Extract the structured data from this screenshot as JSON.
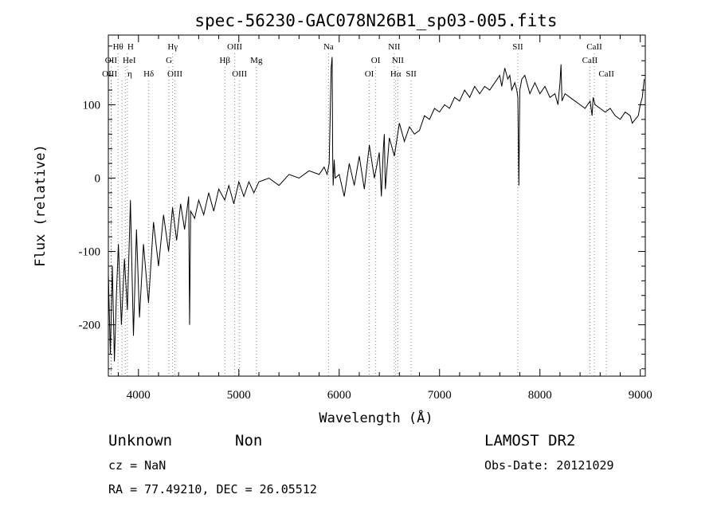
{
  "chart_data": {
    "type": "line",
    "title": "spec-56230-GAC078N26B1_sp03-005.fits",
    "xlabel": "Wavelength (Å)",
    "ylabel": "Flux (relative)",
    "xlim": [
      3700,
      9050
    ],
    "ylim": [
      -270,
      195
    ],
    "x_ticks": [
      4000,
      5000,
      6000,
      7000,
      8000,
      9000
    ],
    "y_ticks": [
      -200,
      -100,
      0,
      100
    ],
    "grid": false,
    "line_color": "#000000",
    "marker_line_color": "#888888",
    "series": [
      {
        "x": [
          3700,
          3720,
          3740,
          3760,
          3780,
          3800,
          3830,
          3860,
          3890,
          3920,
          3950,
          3980,
          4010,
          4050,
          4100,
          4150,
          4200,
          4250,
          4300,
          4340,
          4380,
          4420,
          4460,
          4500,
          4510,
          4520,
          4560,
          4600,
          4650,
          4700,
          4750,
          4800,
          4860,
          4900,
          4950,
          5000,
          5050,
          5100,
          5150,
          5200,
          5300,
          5400,
          5500,
          5600,
          5700,
          5800,
          5850,
          5880,
          5900,
          5920,
          5930,
          5935,
          5940,
          5950,
          5960,
          6000,
          6050,
          6100,
          6150,
          6200,
          6250,
          6300,
          6350,
          6400,
          6420,
          6440,
          6450,
          6460,
          6500,
          6550,
          6600,
          6650,
          6700,
          6750,
          6800,
          6850,
          6900,
          6950,
          7000,
          7050,
          7100,
          7150,
          7200,
          7250,
          7300,
          7350,
          7400,
          7450,
          7500,
          7550,
          7600,
          7620,
          7650,
          7680,
          7700,
          7720,
          7750,
          7770,
          7780,
          7790,
          7800,
          7820,
          7850,
          7900,
          7950,
          8000,
          8050,
          8100,
          8150,
          8180,
          8200,
          8210,
          8220,
          8250,
          8300,
          8350,
          8400,
          8450,
          8500,
          8520,
          8530,
          8550,
          8600,
          8650,
          8700,
          8750,
          8800,
          8850,
          8900,
          8920,
          8950,
          8980,
          9000,
          9020,
          9040
        ],
        "y": [
          -130,
          -240,
          -120,
          -250,
          -160,
          -90,
          -200,
          -110,
          -180,
          -30,
          -215,
          -70,
          -190,
          -90,
          -170,
          -60,
          -120,
          -50,
          -100,
          -40,
          -85,
          -35,
          -70,
          -25,
          -200,
          -45,
          -55,
          -30,
          -50,
          -20,
          -45,
          -15,
          -30,
          -10,
          -35,
          -5,
          -25,
          -5,
          -20,
          -5,
          0,
          -10,
          5,
          0,
          10,
          5,
          15,
          5,
          20,
          150,
          165,
          30,
          -10,
          25,
          0,
          5,
          -25,
          20,
          -10,
          30,
          -15,
          45,
          0,
          35,
          -25,
          40,
          60,
          -15,
          55,
          30,
          75,
          50,
          70,
          60,
          65,
          85,
          80,
          95,
          90,
          100,
          95,
          110,
          105,
          120,
          110,
          125,
          115,
          125,
          120,
          130,
          140,
          125,
          150,
          135,
          140,
          120,
          130,
          120,
          110,
          -10,
          120,
          135,
          140,
          115,
          130,
          115,
          125,
          110,
          115,
          100,
          130,
          155,
          105,
          115,
          110,
          105,
          100,
          95,
          105,
          85,
          110,
          100,
          95,
          90,
          95,
          85,
          80,
          90,
          85,
          75,
          80,
          85,
          100,
          110,
          135
        ]
      }
    ],
    "lines": [
      {
        "w": 3797,
        "label": "Hθ",
        "row": 0,
        "dx": 0
      },
      {
        "w": 3835,
        "label": "η",
        "row": 2,
        "dx": 10
      },
      {
        "w": 3869,
        "label": "HeI",
        "row": 1,
        "dx": 5
      },
      {
        "w": 3889,
        "label": "H",
        "row": 0,
        "dx": 4
      },
      {
        "w": 3727,
        "label": "OII",
        "row": 1,
        "dx": 0
      },
      {
        "w": 3729,
        "label": "OIII",
        "row": 2,
        "dx": -2
      },
      {
        "w": 4102,
        "label": "Hδ",
        "row": 2,
        "dx": 0
      },
      {
        "w": 4304,
        "label": "G",
        "row": 1,
        "dx": 0
      },
      {
        "w": 4341,
        "label": "Hγ",
        "row": 0,
        "dx": 0
      },
      {
        "w": 4363,
        "label": "OIII",
        "row": 2,
        "dx": 0
      },
      {
        "w": 4861,
        "label": "Hβ",
        "row": 1,
        "dx": 0
      },
      {
        "w": 4959,
        "label": "OIII",
        "row": 0,
        "dx": 0
      },
      {
        "w": 5007,
        "label": "OIII",
        "row": 2,
        "dx": 0
      },
      {
        "w": 5175,
        "label": "Mg",
        "row": 1,
        "dx": 0
      },
      {
        "w": 5894,
        "label": "Na",
        "row": 0,
        "dx": 0
      },
      {
        "w": 6300,
        "label": "OI",
        "row": 2,
        "dx": 0
      },
      {
        "w": 6364,
        "label": "OI",
        "row": 1,
        "dx": 0
      },
      {
        "w": 6548,
        "label": "NII",
        "row": 0,
        "dx": 0
      },
      {
        "w": 6563,
        "label": "Hα",
        "row": 2,
        "dx": 0
      },
      {
        "w": 6584,
        "label": "NII",
        "row": 1,
        "dx": 0
      },
      {
        "w": 6717,
        "label": "SII",
        "row": 2,
        "dx": 0
      },
      {
        "w": 7780,
        "label": "SII",
        "row": 0,
        "dx": 0
      },
      {
        "w": 8498,
        "label": "CaII",
        "row": 1,
        "dx": 0
      },
      {
        "w": 8542,
        "label": "CaII",
        "row": 0,
        "dx": 0
      },
      {
        "w": 8662,
        "label": "CaII",
        "row": 2,
        "dx": 0
      }
    ]
  },
  "info": {
    "class": "Unknown",
    "subclass": "Non",
    "survey": "LAMOST DR2",
    "cz": "cz = NaN",
    "obs_date": "Obs-Date: 20121029",
    "radec": "RA =  77.49210, DEC =  26.05512"
  }
}
